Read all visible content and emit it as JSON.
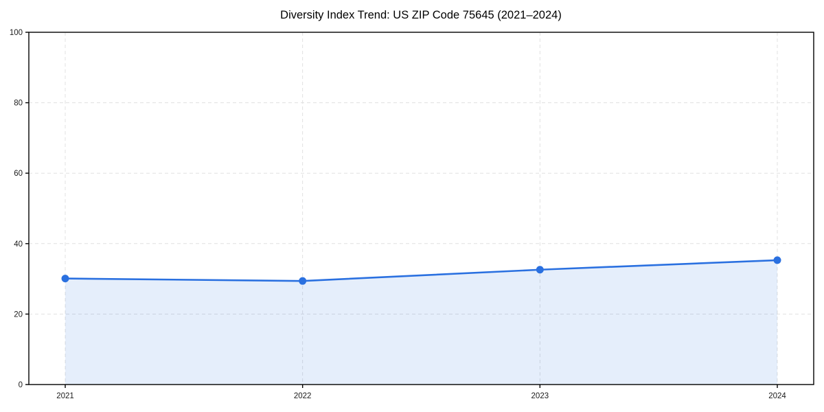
{
  "chart_data": {
    "type": "area",
    "title": "Diversity Index Trend: US ZIP Code 75645 (2021–2024)",
    "x": [
      "2021",
      "2022",
      "2023",
      "2024"
    ],
    "series": [
      {
        "name": "Diversity Index",
        "values": [
          30.1,
          29.4,
          32.6,
          35.3
        ]
      }
    ],
    "xlabel": "",
    "ylabel": "",
    "ylim": [
      0,
      100
    ],
    "yticks": [
      0,
      20,
      40,
      60,
      80,
      100
    ],
    "grid": true,
    "grid_style": "dashed",
    "legend": "none",
    "markers": true,
    "colors": {
      "line": "#2a70e0",
      "marker": "#2a70e0",
      "fill": "#2a70e0",
      "fill_opacity": 0.12,
      "grid": "#e0e0e0",
      "spine": "#000000",
      "tick_label": "#1a1a1a",
      "title": "#000000",
      "background": "#ffffff"
    }
  }
}
